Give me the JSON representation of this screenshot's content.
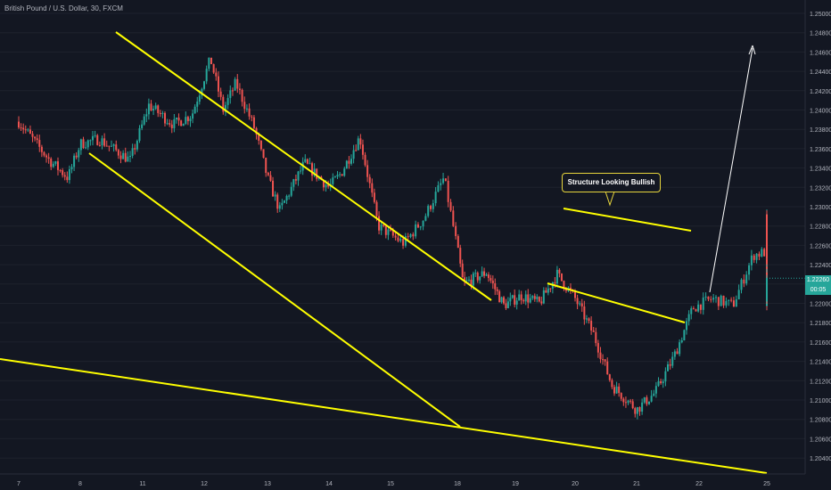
{
  "header": {
    "symbol_title": "British Pound / U.S. Dollar, 30, FXCM"
  },
  "price_scale": {
    "ticks": [
      "1.25000",
      "1.24800",
      "1.24600",
      "1.24400",
      "1.24200",
      "1.24000",
      "1.23800",
      "1.23600",
      "1.23400",
      "1.23200",
      "1.23000",
      "1.22800",
      "1.22600",
      "1.22400",
      "1.22200",
      "1.22000",
      "1.21800",
      "1.21600",
      "1.21400",
      "1.21200",
      "1.21000",
      "1.20800",
      "1.20600",
      "1.20400"
    ],
    "current_price": "1.22260",
    "countdown": "00:05"
  },
  "time_scale": {
    "ticks": [
      "7",
      "8",
      "11",
      "12",
      "13",
      "14",
      "15",
      "18",
      "19",
      "20",
      "21",
      "22",
      "25"
    ]
  },
  "annotation": {
    "text": "Structure Looking Bullish"
  },
  "colors": {
    "background": "#131722",
    "up_candle": "#26a69a",
    "down_candle": "#ef5350",
    "trendline": "#ffff00",
    "callout_border": "#e6d43c",
    "axis_text": "#b2b5be"
  },
  "chart_data": {
    "type": "candlestick",
    "instrument": "British Pound / U.S. Dollar",
    "timeframe": "30",
    "source": "FXCM",
    "ylim": [
      1.203,
      1.251
    ],
    "x_ticks": [
      "7",
      "8",
      "11",
      "12",
      "13",
      "14",
      "15",
      "18",
      "19",
      "20",
      "21",
      "22",
      "25"
    ],
    "last_price": 1.2226,
    "price_path": [
      {
        "t": 0.0,
        "p": 1.2388
      },
      {
        "t": 0.5,
        "p": 1.2348
      },
      {
        "t": 0.8,
        "p": 1.233
      },
      {
        "t": 1.0,
        "p": 1.2365
      },
      {
        "t": 1.3,
        "p": 1.237
      },
      {
        "t": 1.8,
        "p": 1.2348
      },
      {
        "t": 2.1,
        "p": 1.2405
      },
      {
        "t": 2.5,
        "p": 1.2385
      },
      {
        "t": 2.8,
        "p": 1.2395
      },
      {
        "t": 3.1,
        "p": 1.2453
      },
      {
        "t": 3.3,
        "p": 1.24
      },
      {
        "t": 3.5,
        "p": 1.2428
      },
      {
        "t": 3.8,
        "p": 1.238
      },
      {
        "t": 4.0,
        "p": 1.233
      },
      {
        "t": 4.2,
        "p": 1.2296
      },
      {
        "t": 4.6,
        "p": 1.2345
      },
      {
        "t": 5.0,
        "p": 1.232
      },
      {
        "t": 5.2,
        "p": 1.2335
      },
      {
        "t": 5.5,
        "p": 1.2372
      },
      {
        "t": 5.8,
        "p": 1.228
      },
      {
        "t": 6.2,
        "p": 1.2262
      },
      {
        "t": 6.5,
        "p": 1.2288
      },
      {
        "t": 6.8,
        "p": 1.233
      },
      {
        "t": 7.1,
        "p": 1.222
      },
      {
        "t": 7.5,
        "p": 1.2232
      },
      {
        "t": 7.8,
        "p": 1.2198
      },
      {
        "t": 8.1,
        "p": 1.2208
      },
      {
        "t": 8.4,
        "p": 1.22
      },
      {
        "t": 8.7,
        "p": 1.223
      },
      {
        "t": 9.0,
        "p": 1.2205
      },
      {
        "t": 9.3,
        "p": 1.2168
      },
      {
        "t": 9.6,
        "p": 1.2115
      },
      {
        "t": 10.0,
        "p": 1.209
      },
      {
        "t": 10.3,
        "p": 1.2108
      },
      {
        "t": 10.6,
        "p": 1.2145
      },
      {
        "t": 10.9,
        "p": 1.2195
      },
      {
        "t": 11.2,
        "p": 1.2205
      },
      {
        "t": 11.5,
        "p": 1.2198
      },
      {
        "t": 11.8,
        "p": 1.225
      },
      {
        "t": 12.1,
        "p": 1.2255
      },
      {
        "t": 12.4,
        "p": 1.229
      },
      {
        "t": 12.6,
        "p": 1.2252
      },
      {
        "t": 12.9,
        "p": 1.2268
      },
      {
        "t": 13.2,
        "p": 1.2288
      },
      {
        "t": 13.4,
        "p": 1.2245
      },
      {
        "t": 13.7,
        "p": 1.2228
      },
      {
        "t": 14.0,
        "p": 1.2195
      },
      {
        "t": 14.2,
        "p": 1.2208
      },
      {
        "t": 14.45,
        "p": 1.2226
      }
    ]
  }
}
